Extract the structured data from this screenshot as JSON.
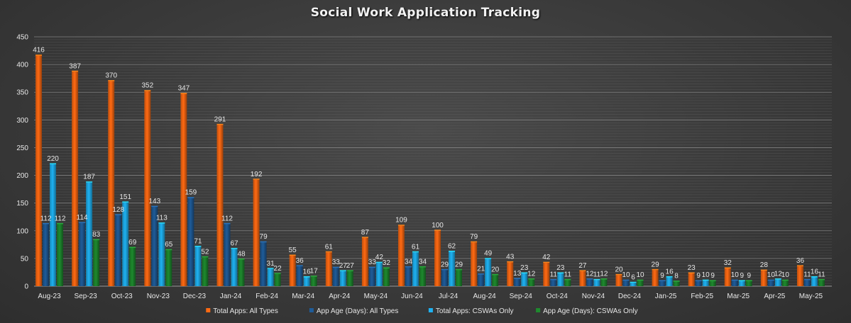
{
  "chart_data": {
    "type": "bar",
    "title": "Social Work Application Tracking",
    "xlabel": "",
    "ylabel": "",
    "ylim": [
      0,
      450
    ],
    "yticks": [
      0,
      50,
      100,
      150,
      200,
      250,
      300,
      350,
      400,
      450
    ],
    "grid": true,
    "legend_position": "bottom",
    "categories": [
      "Aug-23",
      "Sep-23",
      "Oct-23",
      "Nov-23",
      "Dec-23",
      "Jan-24",
      "Feb-24",
      "Mar-24",
      "Apr-24",
      "May-24",
      "Jun-24",
      "Jul-24",
      "Aug-24",
      "Sep-24",
      "Oct-24",
      "Nov-24",
      "Dec-24",
      "Jan-25",
      "Feb-25",
      "Mar-25",
      "Apr-25",
      "May-25"
    ],
    "series": [
      {
        "name": "Total Apps: All Types",
        "color": "#ff6a13",
        "values": [
          416,
          387,
          370,
          352,
          347,
          291,
          192,
          55,
          61,
          87,
          109,
          100,
          79,
          43,
          42,
          27,
          20,
          29,
          23,
          32,
          28,
          36
        ]
      },
      {
        "name": "App Age (Days): All Types",
        "color": "#1f5c99",
        "values": [
          112,
          114,
          128,
          143,
          159,
          112,
          79,
          36,
          33,
          33,
          34,
          29,
          21,
          13,
          11,
          12,
          10,
          9,
          9,
          10,
          10,
          11
        ]
      },
      {
        "name": "Total Apps: CSWAs Only",
        "color": "#1fb2f2",
        "values": [
          220,
          187,
          151,
          113,
          71,
          67,
          31,
          16,
          27,
          42,
          61,
          62,
          49,
          23,
          23,
          11,
          6,
          16,
          10,
          9,
          12,
          16
        ]
      },
      {
        "name": "App Age (Days): CSWAs Only",
        "color": "#1e8a2e",
        "values": [
          112,
          83,
          69,
          65,
          52,
          48,
          22,
          17,
          27,
          32,
          34,
          29,
          20,
          12,
          11,
          12,
          10,
          8,
          9,
          9,
          10,
          11
        ]
      }
    ]
  }
}
